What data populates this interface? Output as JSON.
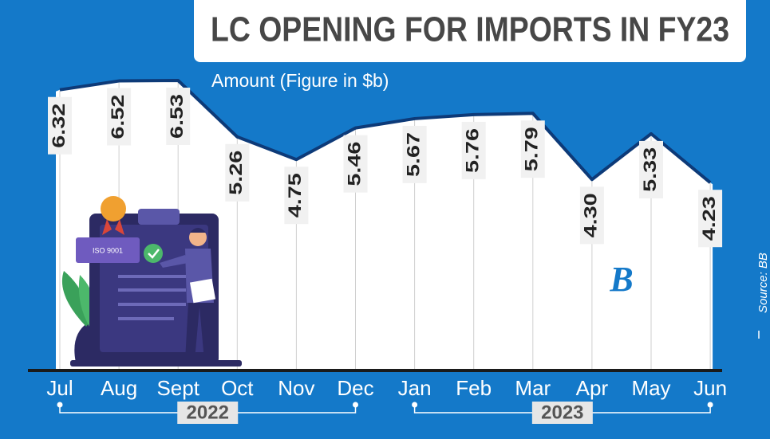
{
  "chart_data": {
    "type": "line",
    "title": "LC OPENING FOR IMPORTS IN FY23",
    "subtitle": "Amount (Figure in $b)",
    "categories": [
      "Jul",
      "Aug",
      "Sept",
      "Oct",
      "Nov",
      "Dec",
      "Jan",
      "Feb",
      "Mar",
      "Apr",
      "May",
      "Jun"
    ],
    "values": [
      6.32,
      6.52,
      6.53,
      5.26,
      4.75,
      5.46,
      5.67,
      5.76,
      5.79,
      4.3,
      5.33,
      4.23
    ],
    "value_labels": [
      "6.32",
      "6.52",
      "6.53",
      "5.26",
      "4.75",
      "5.46",
      "5.67",
      "5.76",
      "5.79",
      "4.30",
      "5.33",
      "4.23"
    ],
    "color": "#0d3a78",
    "year_groups": [
      {
        "label": "2022",
        "from": 0,
        "to": 5
      },
      {
        "label": "2023",
        "from": 6,
        "to": 11
      }
    ],
    "source": "Source: BB",
    "logo": "B",
    "illustration_label": "ISO 9001"
  }
}
